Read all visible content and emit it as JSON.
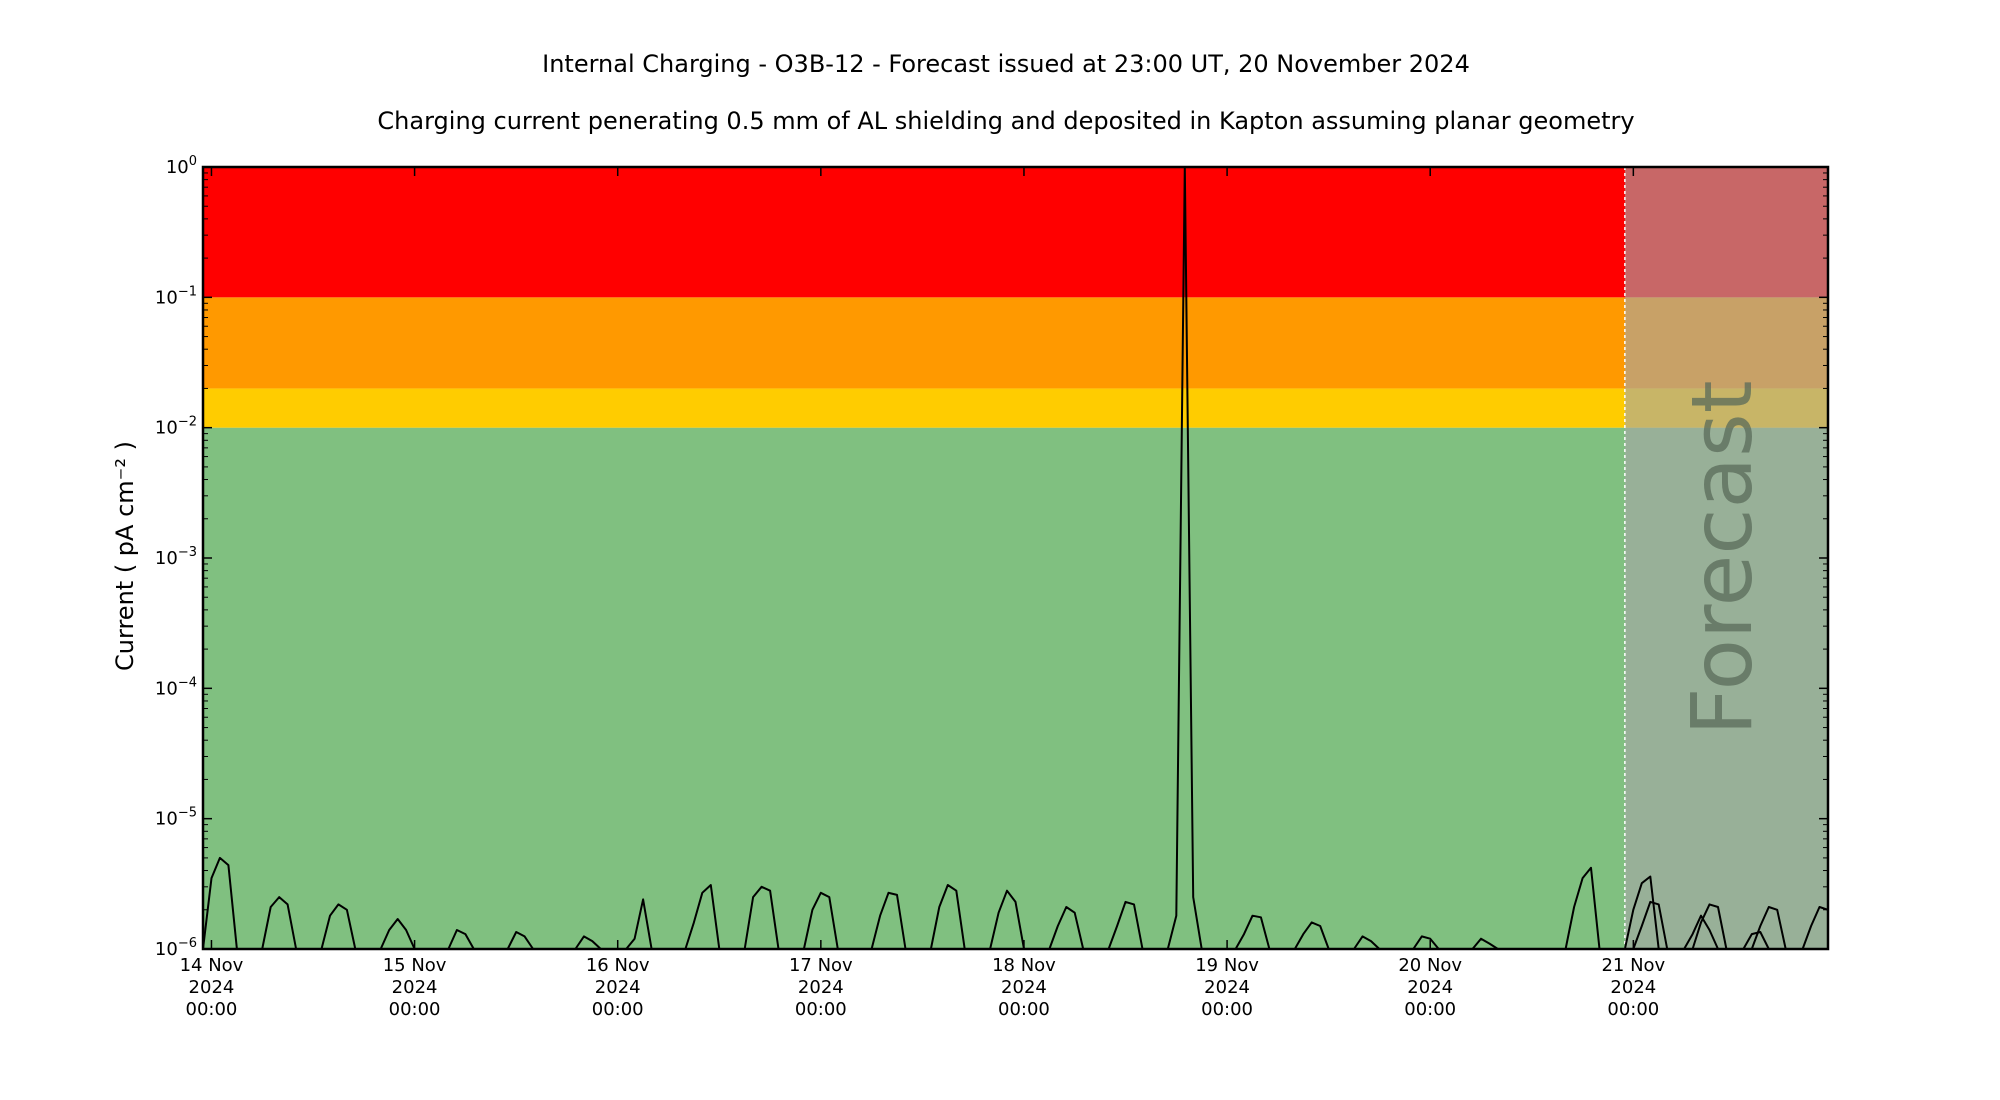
{
  "chart_data": {
    "type": "line",
    "title": "Internal Charging - O3B-12 - Forecast issued at 23:00 UT, 20 November 2024",
    "subtitle": "Charging current penerating 0.5 mm of AL shielding and deposited in Kapton assuming planar geometry",
    "ylabel": "Current ( pA cm⁻² )",
    "y_scale": "log",
    "ylim": [
      1e-06,
      1
    ],
    "y_ticks": [
      {
        "base": "10",
        "exp": "−6"
      },
      {
        "base": "10",
        "exp": "−5"
      },
      {
        "base": "10",
        "exp": "−4"
      },
      {
        "base": "10",
        "exp": "−3"
      },
      {
        "base": "10",
        "exp": "−2"
      },
      {
        "base": "10",
        "exp": "−1"
      },
      {
        "base": "10",
        "exp": "0"
      }
    ],
    "x_tick_labels": [
      [
        "14 Nov",
        "2024",
        "00:00"
      ],
      [
        "15 Nov",
        "2024",
        "00:00"
      ],
      [
        "16 Nov",
        "2024",
        "00:00"
      ],
      [
        "17 Nov",
        "2024",
        "00:00"
      ],
      [
        "18 Nov",
        "2024",
        "00:00"
      ],
      [
        "19 Nov",
        "2024",
        "00:00"
      ],
      [
        "20 Nov",
        "2024",
        "00:00"
      ],
      [
        "21 Nov",
        "2024",
        "00:00"
      ]
    ],
    "x_range": [
      "2024-11-13T23:00",
      "2024-11-21T23:00"
    ],
    "forecast_start": "2024-11-20T23:00",
    "forecast_label": "Forecast",
    "bands": [
      {
        "from": 1e-06,
        "to": 0.01,
        "color": "#80c080"
      },
      {
        "from": 0.01,
        "to": 0.02,
        "color": "#ffcc00"
      },
      {
        "from": 0.02,
        "to": 0.1,
        "color": "#ff9900"
      },
      {
        "from": 0.1,
        "to": 1,
        "color": "#ff0000"
      }
    ],
    "series": [
      {
        "color": "#000000",
        "points": [
          [
            "2024-11-13T23:00",
            1e-06
          ],
          [
            "2024-11-14T00:00",
            3.5e-06
          ],
          [
            "2024-11-14T01:00",
            5e-06
          ],
          [
            "2024-11-14T02:00",
            4.4e-06
          ],
          [
            "2024-11-14T03:00",
            1e-06
          ],
          [
            "2024-11-14T06:00",
            1e-06
          ],
          [
            "2024-11-14T07:00",
            2.1e-06
          ],
          [
            "2024-11-14T08:00",
            2.5e-06
          ],
          [
            "2024-11-14T09:00",
            2.2e-06
          ],
          [
            "2024-11-14T10:00",
            1e-06
          ],
          [
            "2024-11-14T13:00",
            1e-06
          ],
          [
            "2024-11-14T14:00",
            1.8e-06
          ],
          [
            "2024-11-14T15:00",
            2.2e-06
          ],
          [
            "2024-11-14T16:00",
            2e-06
          ],
          [
            "2024-11-14T17:00",
            1e-06
          ],
          [
            "2024-11-14T20:00",
            1e-06
          ],
          [
            "2024-11-14T21:00",
            1.4e-06
          ],
          [
            "2024-11-14T22:00",
            1.7e-06
          ],
          [
            "2024-11-14T23:00",
            1.4e-06
          ],
          [
            "2024-11-15T00:00",
            1e-06
          ],
          [
            "2024-11-15T04:00",
            1e-06
          ],
          [
            "2024-11-15T05:00",
            1.4e-06
          ],
          [
            "2024-11-15T06:00",
            1.3e-06
          ],
          [
            "2024-11-15T07:00",
            1e-06
          ],
          [
            "2024-11-15T11:00",
            1e-06
          ],
          [
            "2024-11-15T12:00",
            1.35e-06
          ],
          [
            "2024-11-15T13:00",
            1.25e-06
          ],
          [
            "2024-11-15T14:00",
            1e-06
          ],
          [
            "2024-11-15T19:00",
            1e-06
          ],
          [
            "2024-11-15T20:00",
            1.25e-06
          ],
          [
            "2024-11-15T21:00",
            1.15e-06
          ],
          [
            "2024-11-15T22:00",
            1e-06
          ],
          [
            "2024-11-16T01:00",
            1e-06
          ],
          [
            "2024-11-16T02:00",
            1.2e-06
          ],
          [
            "2024-11-16T03:00",
            2.4e-06
          ],
          [
            "2024-11-16T04:00",
            1e-06
          ],
          [
            "2024-11-16T08:00",
            1e-06
          ],
          [
            "2024-11-16T09:00",
            1.6e-06
          ],
          [
            "2024-11-16T10:00",
            2.7e-06
          ],
          [
            "2024-11-16T11:00",
            3.1e-06
          ],
          [
            "2024-11-16T12:00",
            1e-06
          ],
          [
            "2024-11-16T15:00",
            1e-06
          ],
          [
            "2024-11-16T16:00",
            2.5e-06
          ],
          [
            "2024-11-16T17:00",
            3e-06
          ],
          [
            "2024-11-16T18:00",
            2.8e-06
          ],
          [
            "2024-11-16T19:00",
            1e-06
          ],
          [
            "2024-11-16T22:00",
            1e-06
          ],
          [
            "2024-11-16T23:00",
            2e-06
          ],
          [
            "2024-11-17T00:00",
            2.7e-06
          ],
          [
            "2024-11-17T01:00",
            2.5e-06
          ],
          [
            "2024-11-17T02:00",
            1e-06
          ],
          [
            "2024-11-17T06:00",
            1e-06
          ],
          [
            "2024-11-17T07:00",
            1.8e-06
          ],
          [
            "2024-11-17T08:00",
            2.7e-06
          ],
          [
            "2024-11-17T09:00",
            2.6e-06
          ],
          [
            "2024-11-17T10:00",
            1e-06
          ],
          [
            "2024-11-17T13:00",
            1e-06
          ],
          [
            "2024-11-17T14:00",
            2.1e-06
          ],
          [
            "2024-11-17T15:00",
            3.1e-06
          ],
          [
            "2024-11-17T16:00",
            2.8e-06
          ],
          [
            "2024-11-17T17:00",
            1e-06
          ],
          [
            "2024-11-17T20:00",
            1e-06
          ],
          [
            "2024-11-17T21:00",
            1.9e-06
          ],
          [
            "2024-11-17T22:00",
            2.8e-06
          ],
          [
            "2024-11-17T23:00",
            2.3e-06
          ],
          [
            "2024-11-18T00:00",
            1e-06
          ],
          [
            "2024-11-18T03:00",
            1e-06
          ],
          [
            "2024-11-18T04:00",
            1.5e-06
          ],
          [
            "2024-11-18T05:00",
            2.1e-06
          ],
          [
            "2024-11-18T06:00",
            1.9e-06
          ],
          [
            "2024-11-18T07:00",
            1e-06
          ],
          [
            "2024-11-18T10:00",
            1e-06
          ],
          [
            "2024-11-18T11:00",
            1.5e-06
          ],
          [
            "2024-11-18T12:00",
            2.3e-06
          ],
          [
            "2024-11-18T13:00",
            2.2e-06
          ],
          [
            "2024-11-18T14:00",
            1e-06
          ],
          [
            "2024-11-18T17:00",
            1e-06
          ],
          [
            "2024-11-18T18:00",
            1.8e-06
          ],
          [
            "2024-11-18T19:00",
            1.0
          ],
          [
            "2024-11-18T20:00",
            2.5e-06
          ],
          [
            "2024-11-18T21:00",
            1e-06
          ],
          [
            "2024-11-19T01:00",
            1e-06
          ],
          [
            "2024-11-19T02:00",
            1.3e-06
          ],
          [
            "2024-11-19T03:00",
            1.8e-06
          ],
          [
            "2024-11-19T04:00",
            1.75e-06
          ],
          [
            "2024-11-19T05:00",
            1e-06
          ],
          [
            "2024-11-19T08:00",
            1e-06
          ],
          [
            "2024-11-19T09:00",
            1.3e-06
          ],
          [
            "2024-11-19T10:00",
            1.6e-06
          ],
          [
            "2024-11-19T11:00",
            1.5e-06
          ],
          [
            "2024-11-19T12:00",
            1e-06
          ],
          [
            "2024-11-19T15:00",
            1e-06
          ],
          [
            "2024-11-19T16:00",
            1.25e-06
          ],
          [
            "2024-11-19T17:00",
            1.15e-06
          ],
          [
            "2024-11-19T18:00",
            1e-06
          ],
          [
            "2024-11-19T22:00",
            1e-06
          ],
          [
            "2024-11-19T23:00",
            1.25e-06
          ],
          [
            "2024-11-20T00:00",
            1.2e-06
          ],
          [
            "2024-11-20T01:00",
            1e-06
          ],
          [
            "2024-11-20T05:00",
            1e-06
          ],
          [
            "2024-11-20T06:00",
            1.2e-06
          ],
          [
            "2024-11-20T07:00",
            1.1e-06
          ],
          [
            "2024-11-20T08:00",
            1e-06
          ],
          [
            "2024-11-20T16:00",
            1e-06
          ],
          [
            "2024-11-20T17:00",
            2.1e-06
          ],
          [
            "2024-11-20T18:00",
            3.5e-06
          ],
          [
            "2024-11-20T19:00",
            4.2e-06
          ],
          [
            "2024-11-20T20:00",
            1e-06
          ],
          [
            "2024-11-20T23:00",
            1e-06
          ],
          [
            "2024-11-21T00:00",
            2e-06
          ],
          [
            "2024-11-21T01:00",
            3.2e-06
          ],
          [
            "2024-11-21T02:00",
            3.6e-06
          ],
          [
            "2024-11-21T03:00",
            1e-06
          ],
          [
            "2024-11-21T06:00",
            1e-06
          ],
          [
            "2024-11-21T07:00",
            1.3e-06
          ],
          [
            "2024-11-21T08:00",
            1.8e-06
          ],
          [
            "2024-11-21T09:00",
            1.4e-06
          ],
          [
            "2024-11-21T10:00",
            1e-06
          ],
          [
            "2024-11-21T13:00",
            1e-06
          ],
          [
            "2024-11-21T14:00",
            1.3e-06
          ],
          [
            "2024-11-21T15:00",
            1.35e-06
          ],
          [
            "2024-11-21T16:00",
            1e-06
          ]
        ]
      },
      {
        "color": "#000000",
        "forecast": true,
        "points": [
          [
            "2024-11-21T00:00",
            1e-06
          ],
          [
            "2024-11-21T01:00",
            1.5e-06
          ],
          [
            "2024-11-21T02:00",
            2.3e-06
          ],
          [
            "2024-11-21T03:00",
            2.2e-06
          ],
          [
            "2024-11-21T04:00",
            1e-06
          ],
          [
            "2024-11-21T07:00",
            1e-06
          ],
          [
            "2024-11-21T08:00",
            1.6e-06
          ],
          [
            "2024-11-21T09:00",
            2.2e-06
          ],
          [
            "2024-11-21T10:00",
            2.1e-06
          ],
          [
            "2024-11-21T11:00",
            1e-06
          ],
          [
            "2024-11-21T14:00",
            1e-06
          ],
          [
            "2024-11-21T15:00",
            1.5e-06
          ],
          [
            "2024-11-21T16:00",
            2.1e-06
          ],
          [
            "2024-11-21T17:00",
            2e-06
          ],
          [
            "2024-11-21T18:00",
            1e-06
          ],
          [
            "2024-11-21T20:00",
            1e-06
          ],
          [
            "2024-11-21T21:00",
            1.5e-06
          ],
          [
            "2024-11-21T22:00",
            2.1e-06
          ],
          [
            "2024-11-21T23:00",
            2e-06
          ]
        ]
      }
    ],
    "grid": false,
    "legend": "none"
  }
}
